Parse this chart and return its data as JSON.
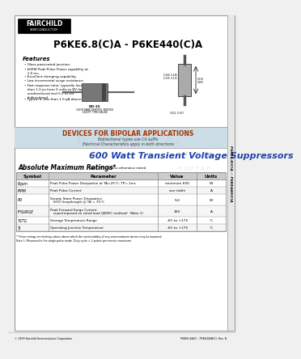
{
  "title": "P6KE6.8(C)A - P6KE440(C)A",
  "subtitle": "600 Watt Transient Voltage Suppressors",
  "abs_max_title": "Absolute Maximum Ratings",
  "table_headers": [
    "Symbol",
    "Parameter",
    "Value",
    "Units"
  ],
  "table_rows": [
    [
      "Pppm",
      "Peak Pulse Power Dissipation at TA=25°C, TP= 1ms",
      "minimum 600",
      "W"
    ],
    [
      "IPPM",
      "Peak Pulse Current",
      "see table",
      "A"
    ],
    [
      "PD",
      "Steady State Power Dissipation\n   50% Unepilength @ TA = 75°C",
      "5.0",
      "W"
    ],
    [
      "IFSURGE",
      "Peak Forward Surge Current\n   superimposed on rated load (JEDEC method)  (Note 1)",
      "100",
      "A"
    ],
    [
      "TSTG",
      "Storage Temperature Range",
      "-65 to +175",
      "°C"
    ],
    [
      "TJ",
      "Operating Junction Temperature",
      "-65 to +175",
      "°C"
    ]
  ],
  "features": [
    "Glass passivated junction.",
    "600W Peak Pulse Power capability at\n   1.0 ms.",
    "Excellent clamping capability.",
    "Low incremental surge resistance.",
    "Fast response time; typically less\n   than 1.0 ps from 0 volts to BV for\n   unidirectional and 5.0 ns for\n   bidirectional.",
    "Typical IL less than 1.0 μA above 10V."
  ],
  "bipolar_note": "DEVICES FOR BIPOLAR APPLICATIONS",
  "bipolar_sub1": "Bidirectional types use CA suffix",
  "bipolar_sub2": "Electrical Characteristics apply in both directions",
  "footer_left": "© 1999 Fairchild Semiconductor Corporation",
  "footer_right": "P6KE6.8A(C) - P6KE440A(C), Rev. B",
  "sidebar_text": "P6KE6.8(C)A ~ P6KE440(C)A",
  "bg_color": "#f0f0f0",
  "page_bg": "#ffffff",
  "border_color": "#999999",
  "table_line_color": "#888888",
  "bipolar_bg": "#ccdde8",
  "subtitle_color": "#2244aa"
}
